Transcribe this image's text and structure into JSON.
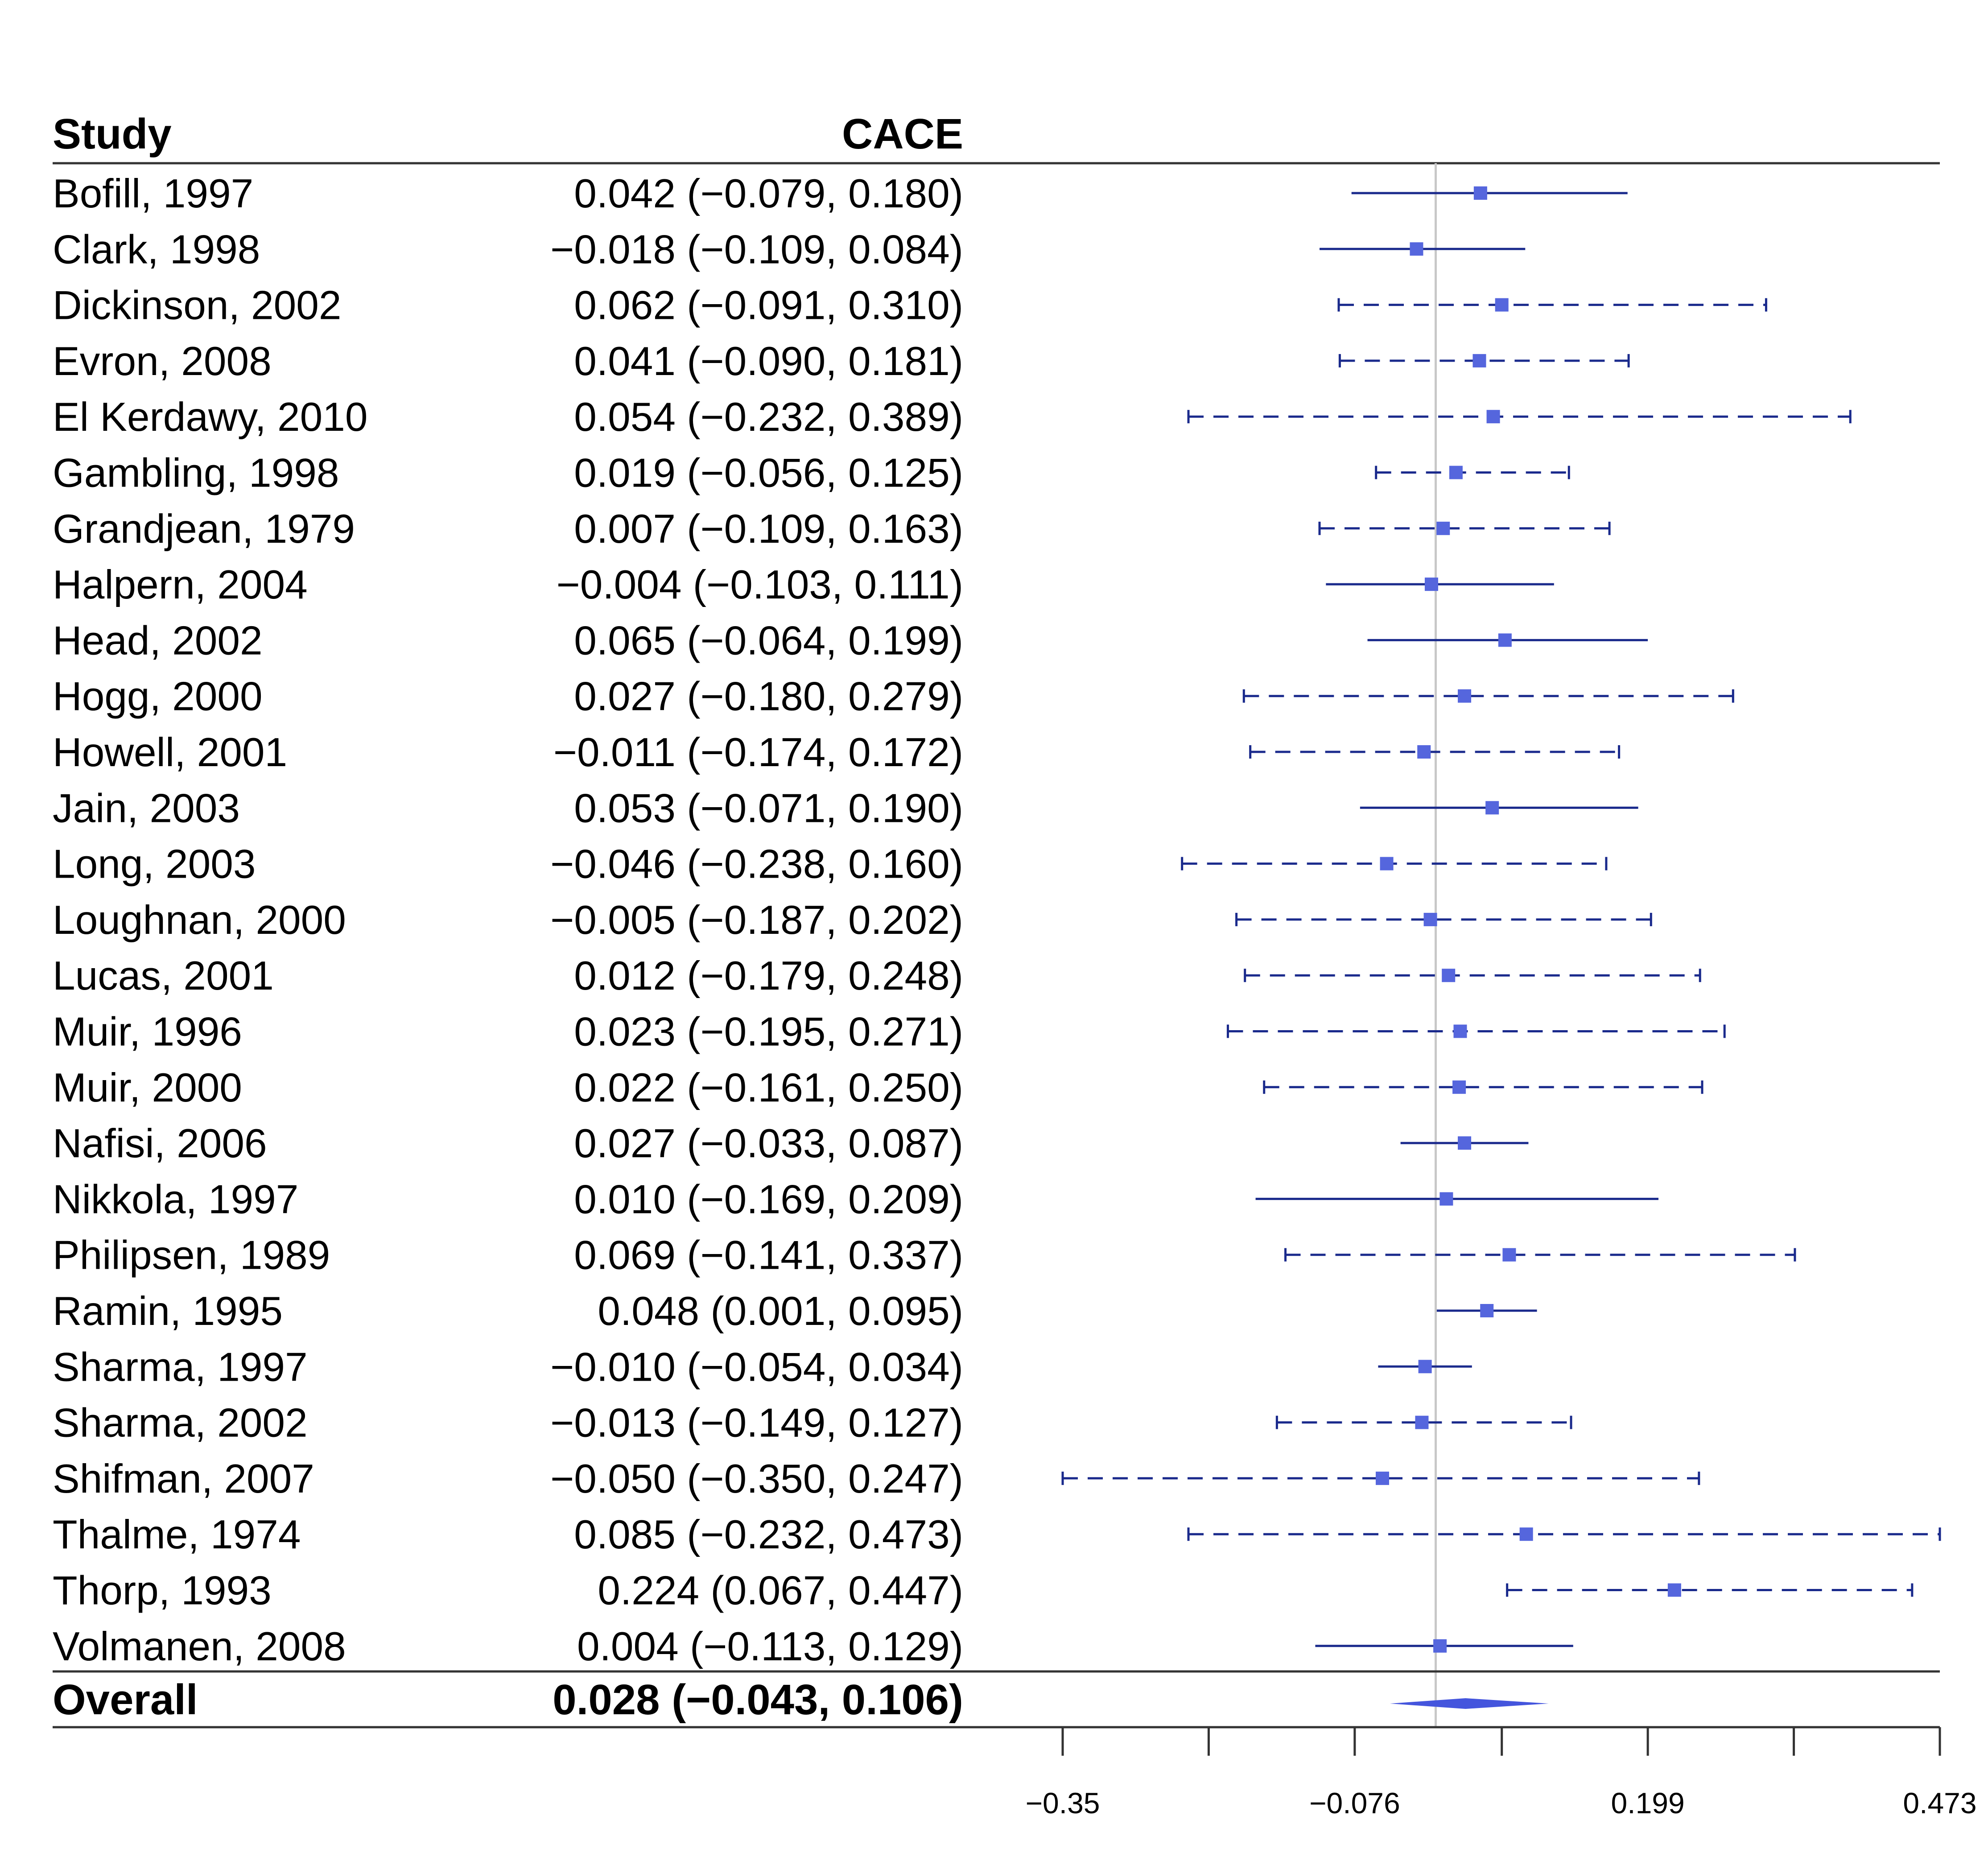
{
  "chart_data": {
    "type": "forest",
    "columns": {
      "study": "Study",
      "estimate": "CACE"
    },
    "rows": [
      {
        "label": "Bofill, 1997",
        "text": "0.042 (−0.079, 0.180)",
        "est": 0.042,
        "lo": -0.079,
        "hi": 0.18,
        "line": "solid"
      },
      {
        "label": "Clark, 1998",
        "text": "−0.018 (−0.109, 0.084)",
        "est": -0.018,
        "lo": -0.109,
        "hi": 0.084,
        "line": "solid"
      },
      {
        "label": "Dickinson, 2002",
        "text": "0.062 (−0.091, 0.310)",
        "est": 0.062,
        "lo": -0.091,
        "hi": 0.31,
        "line": "dashed"
      },
      {
        "label": "Evron, 2008",
        "text": "0.041 (−0.090, 0.181)",
        "est": 0.041,
        "lo": -0.09,
        "hi": 0.181,
        "line": "dashed"
      },
      {
        "label": "El Kerdawy, 2010",
        "text": "0.054 (−0.232, 0.389)",
        "est": 0.054,
        "lo": -0.232,
        "hi": 0.389,
        "line": "dashed"
      },
      {
        "label": "Gambling, 1998",
        "text": "0.019 (−0.056, 0.125)",
        "est": 0.019,
        "lo": -0.056,
        "hi": 0.125,
        "line": "dashed"
      },
      {
        "label": "Grandjean, 1979",
        "text": "0.007 (−0.109, 0.163)",
        "est": 0.007,
        "lo": -0.109,
        "hi": 0.163,
        "line": "dashed"
      },
      {
        "label": "Halpern, 2004",
        "text": "−0.004 (−0.103, 0.111)",
        "est": -0.004,
        "lo": -0.103,
        "hi": 0.111,
        "line": "solid"
      },
      {
        "label": "Head, 2002",
        "text": "0.065 (−0.064, 0.199)",
        "est": 0.065,
        "lo": -0.064,
        "hi": 0.199,
        "line": "solid"
      },
      {
        "label": "Hogg, 2000",
        "text": "0.027 (−0.180, 0.279)",
        "est": 0.027,
        "lo": -0.18,
        "hi": 0.279,
        "line": "dashed"
      },
      {
        "label": "Howell, 2001",
        "text": "−0.011 (−0.174, 0.172)",
        "est": -0.011,
        "lo": -0.174,
        "hi": 0.172,
        "line": "dashed"
      },
      {
        "label": "Jain, 2003",
        "text": "0.053 (−0.071, 0.190)",
        "est": 0.053,
        "lo": -0.071,
        "hi": 0.19,
        "line": "solid"
      },
      {
        "label": "Long, 2003",
        "text": "−0.046 (−0.238, 0.160)",
        "est": -0.046,
        "lo": -0.238,
        "hi": 0.16,
        "line": "dashed"
      },
      {
        "label": "Loughnan, 2000",
        "text": "−0.005 (−0.187, 0.202)",
        "est": -0.005,
        "lo": -0.187,
        "hi": 0.202,
        "line": "dashed"
      },
      {
        "label": "Lucas, 2001",
        "text": "0.012 (−0.179, 0.248)",
        "est": 0.012,
        "lo": -0.179,
        "hi": 0.248,
        "line": "dashed"
      },
      {
        "label": "Muir, 1996",
        "text": "0.023 (−0.195, 0.271)",
        "est": 0.023,
        "lo": -0.195,
        "hi": 0.271,
        "line": "dashed"
      },
      {
        "label": "Muir, 2000",
        "text": "0.022 (−0.161, 0.250)",
        "est": 0.022,
        "lo": -0.161,
        "hi": 0.25,
        "line": "dashed"
      },
      {
        "label": "Nafisi, 2006",
        "text": "0.027 (−0.033, 0.087)",
        "est": 0.027,
        "lo": -0.033,
        "hi": 0.087,
        "line": "solid"
      },
      {
        "label": "Nikkola, 1997",
        "text": "0.010 (−0.169, 0.209)",
        "est": 0.01,
        "lo": -0.169,
        "hi": 0.209,
        "line": "solid"
      },
      {
        "label": "Philipsen, 1989",
        "text": "0.069 (−0.141, 0.337)",
        "est": 0.069,
        "lo": -0.141,
        "hi": 0.337,
        "line": "dashed"
      },
      {
        "label": "Ramin, 1995",
        "text": "0.048 (0.001, 0.095)",
        "est": 0.048,
        "lo": 0.001,
        "hi": 0.095,
        "line": "solid"
      },
      {
        "label": "Sharma, 1997",
        "text": "−0.010 (−0.054, 0.034)",
        "est": -0.01,
        "lo": -0.054,
        "hi": 0.034,
        "line": "solid"
      },
      {
        "label": "Sharma, 2002",
        "text": "−0.013 (−0.149, 0.127)",
        "est": -0.013,
        "lo": -0.149,
        "hi": 0.127,
        "line": "dashed"
      },
      {
        "label": "Shifman, 2007",
        "text": "−0.050 (−0.350, 0.247)",
        "est": -0.05,
        "lo": -0.35,
        "hi": 0.247,
        "line": "dashed"
      },
      {
        "label": "Thalme, 1974",
        "text": "0.085 (−0.232, 0.473)",
        "est": 0.085,
        "lo": -0.232,
        "hi": 0.473,
        "line": "dashed"
      },
      {
        "label": "Thorp, 1993",
        "text": "0.224 (0.067, 0.447)",
        "est": 0.224,
        "lo": 0.067,
        "hi": 0.447,
        "line": "dashed"
      },
      {
        "label": "Volmanen, 2008",
        "text": "0.004 (−0.113, 0.129)",
        "est": 0.004,
        "lo": -0.113,
        "hi": 0.129,
        "line": "solid"
      }
    ],
    "overall": {
      "label": "Overall",
      "text": "0.028 (−0.043, 0.106)",
      "est": 0.028,
      "lo": -0.043,
      "hi": 0.106
    },
    "x_axis": {
      "range": [
        -0.35,
        0.473
      ],
      "ticks": [
        -0.35,
        -0.213,
        -0.076,
        0.062,
        0.199,
        0.336,
        0.473
      ],
      "tick_labels": [
        {
          "value": -0.35,
          "label": "−0.35"
        },
        {
          "value": -0.076,
          "label": "−0.076"
        },
        {
          "value": 0.199,
          "label": "0.199"
        },
        {
          "value": 0.473,
          "label": "0.473"
        }
      ]
    },
    "reference_line": 0,
    "colors": {
      "interval": "#1a2a8c",
      "point": "#5566dd",
      "diamond": "#4455dd",
      "reference": "#c8c8c8",
      "rules": "#333333"
    }
  }
}
